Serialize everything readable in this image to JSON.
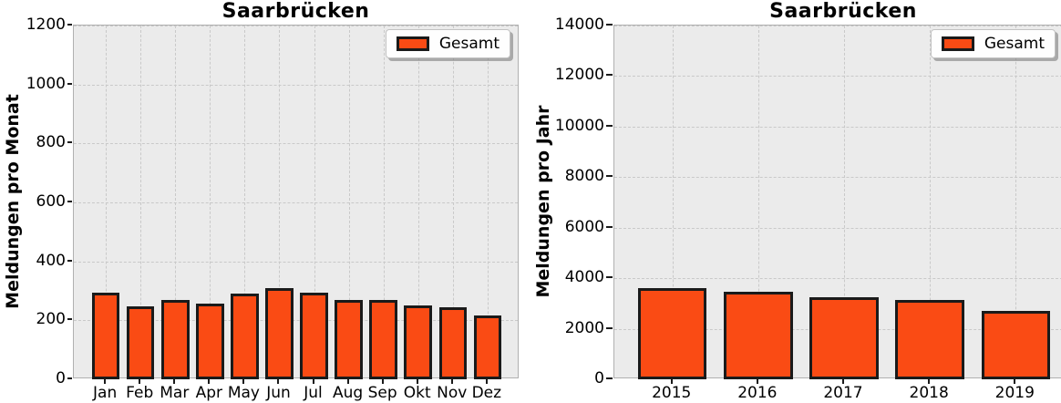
{
  "figure": {
    "background": "#FFFFFF",
    "plot_background": "#EBEBEB",
    "grid_color": "#C9C9C9"
  },
  "chart_data": [
    {
      "type": "bar",
      "title": "Saarbrücken",
      "ylabel": "Meldungen pro Monat",
      "xlabel": "",
      "categories": [
        "Jan",
        "Feb",
        "Mar",
        "Apr",
        "May",
        "Jun",
        "Jul",
        "Aug",
        "Sep",
        "Okt",
        "Nov",
        "Dez"
      ],
      "series": [
        {
          "name": "Gesamt",
          "values": [
            293,
            246,
            270,
            258,
            292,
            310,
            294,
            268,
            270,
            252,
            243,
            215
          ]
        }
      ],
      "ylim": [
        0,
        1200
      ],
      "ytick_step": 200,
      "yticks": [
        0,
        200,
        400,
        600,
        800,
        1000,
        1200
      ],
      "grid": true,
      "grid_style": "dashed",
      "legend": {
        "label": "Gesamt",
        "position": "upper right"
      },
      "colors": {
        "bar_fill": "#FA4B14",
        "bar_edge": "#1A1A1A"
      }
    },
    {
      "type": "bar",
      "title": "Saarbrücken",
      "ylabel": "Meldungen pro Jahr",
      "xlabel": "",
      "categories": [
        "2015",
        "2016",
        "2017",
        "2018",
        "2019"
      ],
      "series": [
        {
          "name": "Gesamt",
          "values": [
            3620,
            3450,
            3250,
            3125,
            2695
          ]
        }
      ],
      "ylim": [
        0,
        14000
      ],
      "ytick_step": 2000,
      "yticks": [
        0,
        2000,
        4000,
        6000,
        8000,
        10000,
        12000,
        14000
      ],
      "grid": true,
      "grid_style": "dashed",
      "legend": {
        "label": "Gesamt",
        "position": "upper right"
      },
      "colors": {
        "bar_fill": "#FA4B14",
        "bar_edge": "#1A1A1A"
      }
    }
  ]
}
